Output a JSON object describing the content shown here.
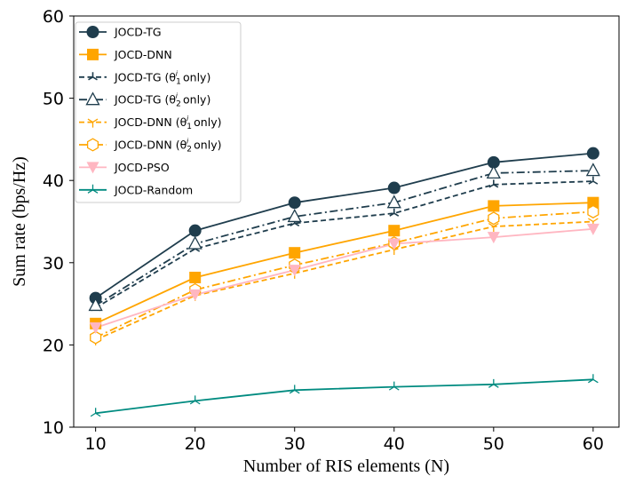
{
  "chart_data": {
    "type": "line",
    "title": "",
    "xlabel": "Number of RIS elements (N)",
    "ylabel": "Sum rate (bps/Hz)",
    "x": [
      10,
      20,
      30,
      40,
      50,
      60
    ],
    "xticks": [
      10,
      20,
      30,
      40,
      50,
      60
    ],
    "yticks": [
      10,
      20,
      30,
      40,
      50,
      60
    ],
    "xlim": [
      7.8,
      62.6
    ],
    "ylim": [
      10,
      60
    ],
    "grid": false,
    "legend_position": "top-left",
    "series": [
      {
        "name": "JOCD-TG",
        "label_pre": "JOCD-TG",
        "label_mid": "",
        "label_post": "",
        "color": "#1f3d4d",
        "dash": "solid",
        "marker": "circle-filled",
        "values": [
          25.7,
          33.9,
          37.3,
          39.1,
          42.2,
          43.3
        ]
      },
      {
        "name": "JOCD-DNN",
        "label_pre": "JOCD-DNN",
        "label_mid": "",
        "label_post": "",
        "color": "#ffa500",
        "dash": "solid",
        "marker": "square-filled",
        "values": [
          22.6,
          28.2,
          31.2,
          33.9,
          36.9,
          37.3
        ]
      },
      {
        "name": "JOCD-TG (θ1 only)",
        "label_pre": "JOCD-TG (θ",
        "label_mid": "1",
        "label_post": " only)",
        "color": "#1f3d4d",
        "dash": "dashed",
        "marker": "tri-star",
        "values": [
          24.5,
          31.7,
          34.8,
          36.0,
          39.5,
          39.9
        ]
      },
      {
        "name": "JOCD-TG (θ2 only)",
        "label_pre": "JOCD-TG (θ",
        "label_mid": "2",
        "label_post": " only)",
        "color": "#1f3d4d",
        "dash": "dashdot",
        "marker": "triangle-open",
        "values": [
          24.8,
          32.3,
          35.6,
          37.3,
          40.9,
          41.2
        ]
      },
      {
        "name": "JOCD-DNN (θ1 only)",
        "label_pre": "JOCD-DNN (θ",
        "label_mid": "1",
        "label_post": " only)",
        "color": "#ffa500",
        "dash": "dashed",
        "marker": "tri-down",
        "values": [
          20.6,
          26.0,
          28.7,
          31.6,
          34.4,
          35.0
        ]
      },
      {
        "name": "JOCD-DNN (θ2 only)",
        "label_pre": "JOCD-DNN (θ",
        "label_mid": "2",
        "label_post": " only)",
        "color": "#ffa500",
        "dash": "dashdot",
        "marker": "hexagon-open",
        "values": [
          20.9,
          26.7,
          29.7,
          32.4,
          35.4,
          36.2
        ]
      },
      {
        "name": "JOCD-PSO",
        "label_pre": "JOCD-PSO",
        "label_mid": "",
        "label_post": "",
        "color": "#ffb6c1",
        "dash": "solid",
        "marker": "triangle-down-filled",
        "values": [
          22.1,
          26.1,
          29.1,
          32.3,
          33.1,
          34.1
        ]
      },
      {
        "name": "JOCD-Random",
        "label_pre": "JOCD-Random",
        "label_mid": "",
        "label_post": "",
        "color": "#008b80",
        "dash": "solid",
        "marker": "tri-up",
        "values": [
          11.7,
          13.2,
          14.5,
          14.9,
          15.2,
          15.8
        ]
      }
    ]
  }
}
